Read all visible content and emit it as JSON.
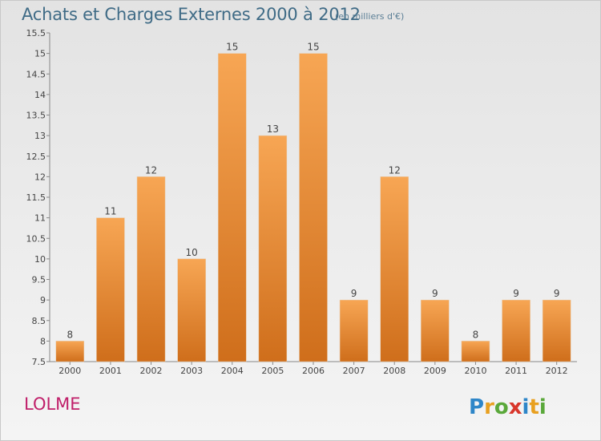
{
  "header": {
    "title": "Achats et Charges Externes 2000 à 2012",
    "subtitle": "(en milliers d'€)"
  },
  "footer": {
    "commune": "LOLME",
    "logo_text": "Proxiti"
  },
  "colors": {
    "bar_top": "#f7a654",
    "bar_bottom": "#cf6e1b",
    "title": "#3f6b86",
    "commune": "#c0206a"
  },
  "chart_data": {
    "type": "bar",
    "title": "Achats et Charges Externes 2000 à 2012",
    "subtitle": "(en milliers d'€)",
    "categories": [
      "2000",
      "2001",
      "2002",
      "2003",
      "2004",
      "2005",
      "2006",
      "2007",
      "2008",
      "2009",
      "2010",
      "2011",
      "2012"
    ],
    "values": [
      8,
      11,
      12,
      10,
      15,
      13,
      15,
      9,
      12,
      9,
      8,
      9,
      9
    ],
    "ylim": [
      7.5,
      15.5
    ],
    "yticks": [
      7.5,
      8,
      8.5,
      9,
      9.5,
      10,
      10.5,
      11,
      11.5,
      12,
      12.5,
      13,
      13.5,
      14,
      14.5,
      15,
      15.5
    ],
    "ytick_labels": [
      "7.5",
      "8",
      "8.5",
      "9",
      "9.5",
      "10",
      "10.5",
      "11",
      "11.5",
      "12",
      "12.5",
      "13",
      "13.5",
      "14",
      "14.5",
      "15",
      "15.5"
    ],
    "grid": false,
    "legend": "none"
  }
}
